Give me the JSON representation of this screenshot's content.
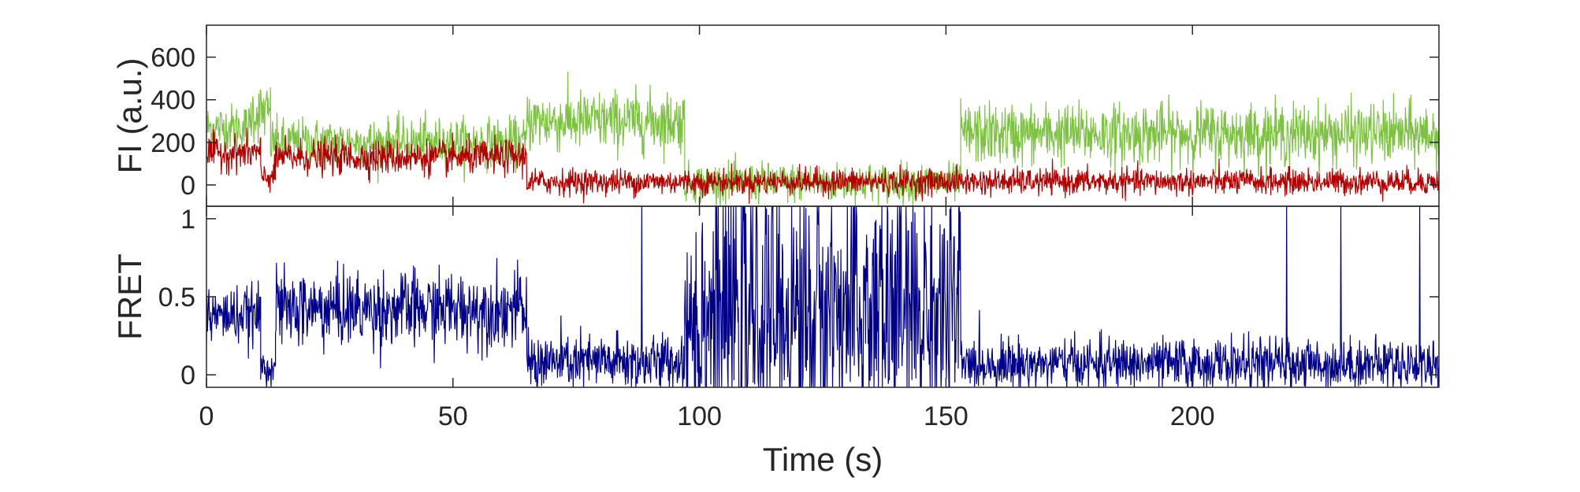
{
  "chart_data": [
    {
      "type": "line",
      "panel": "top",
      "ylabel": "FI (a.u.)",
      "xlabel": "",
      "xlim": [
        0,
        250
      ],
      "ylim": [
        -100,
        750
      ],
      "yticks": [
        0,
        200,
        400,
        600
      ],
      "xticks": [
        0,
        50,
        100,
        150,
        200
      ],
      "show_xtick_labels": false,
      "grid": false,
      "legend": "none",
      "colors": {
        "donor": "#7DC242",
        "acceptor": "#B30000"
      },
      "series": [
        {
          "color": "#7DC242",
          "segments": [
            {
              "x": [
                0,
                9
              ],
              "mean": 270,
              "noise": 55
            },
            {
              "x": [
                9,
                13
              ],
              "mean": 340,
              "noise": 70
            },
            {
              "x": [
                13,
                65
              ],
              "mean": 200,
              "noise": 55
            },
            {
              "x": [
                65,
                97
              ],
              "mean": 300,
              "noise": 70
            },
            {
              "x": [
                97,
                153
              ],
              "mean": 10,
              "noise": 45
            },
            {
              "x": [
                153,
                250
              ],
              "mean": 240,
              "noise": 70
            }
          ]
        },
        {
          "color": "#B30000",
          "segments": [
            {
              "x": [
                0,
                11
              ],
              "mean": 150,
              "noise": 40
            },
            {
              "x": [
                11,
                14
              ],
              "mean": 40,
              "noise": 35
            },
            {
              "x": [
                14,
                65
              ],
              "mean": 130,
              "noise": 40
            },
            {
              "x": [
                65,
                250
              ],
              "mean": 15,
              "noise": 30
            }
          ]
        }
      ]
    },
    {
      "type": "line",
      "panel": "bottom",
      "ylabel": "FRET",
      "xlabel": "Time (s)",
      "xlim": [
        0,
        250
      ],
      "ylim": [
        -0.08,
        1.08
      ],
      "yticks": [
        0,
        0.5,
        1
      ],
      "ytick_labels": [
        "0",
        "0.5",
        "1"
      ],
      "xticks": [
        0,
        50,
        100,
        150,
        200
      ],
      "xtick_labels": [
        "0",
        "50",
        "100",
        "150",
        "200"
      ],
      "grid": false,
      "legend": "none",
      "series": [
        {
          "color": "#00008B",
          "segments": [
            {
              "x": [
                0,
                11
              ],
              "mean": 0.38,
              "noise": 0.09
            },
            {
              "x": [
                11,
                14
              ],
              "mean": 0.05,
              "noise": 0.06
            },
            {
              "x": [
                14,
                65
              ],
              "mean": 0.42,
              "noise": 0.12
            },
            {
              "x": [
                65,
                97
              ],
              "mean": 0.08,
              "noise": 0.09
            },
            {
              "x": [
                97,
                153
              ],
              "mean": 0.4,
              "noise": 0.45
            },
            {
              "x": [
                153,
                250
              ],
              "mean": 0.07,
              "noise": 0.08
            }
          ],
          "spikes": [
            {
              "x": 88.5,
              "y": 1.08
            },
            {
              "x": 219.5,
              "y": 1.08
            },
            {
              "x": 230.5,
              "y": 1.08
            },
            {
              "x": 246.5,
              "y": 1.08
            }
          ]
        }
      ]
    }
  ]
}
